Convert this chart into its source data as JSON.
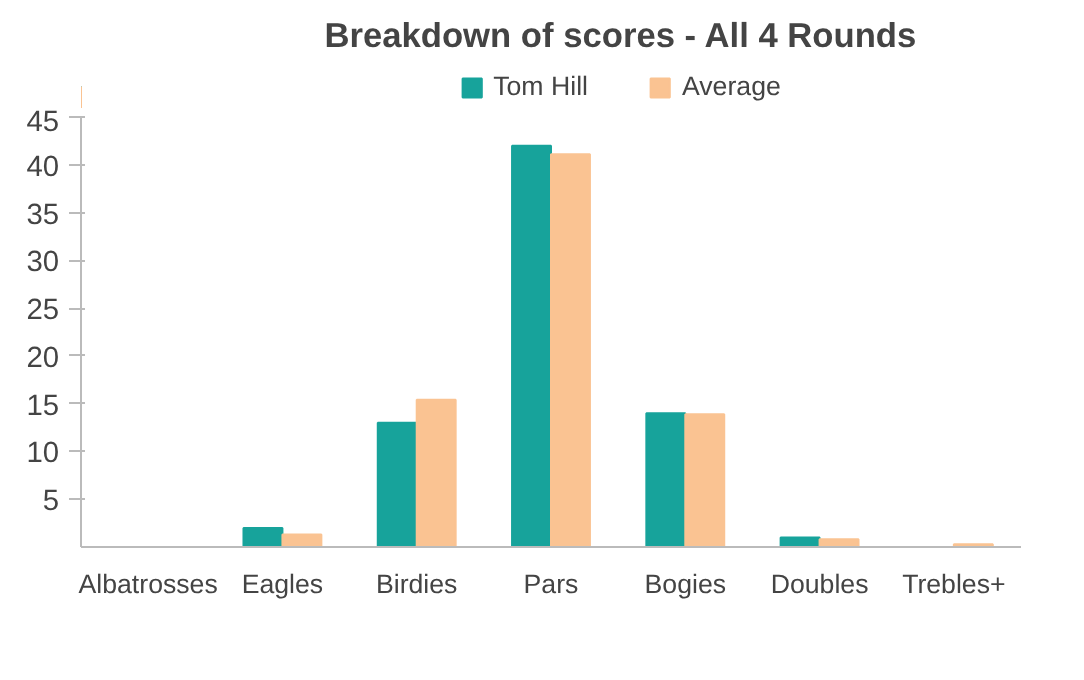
{
  "chart_data": {
    "type": "bar",
    "title": "Breakdown of scores - All 4 Rounds",
    "categories": [
      "Albatrosses",
      "Eagles",
      "Birdies",
      "Pars",
      "Bogies",
      "Doubles",
      "Trebles+"
    ],
    "series": [
      {
        "name": "Tom Hill",
        "color": "#17a39b",
        "values": [
          0,
          2,
          13,
          42,
          14,
          1,
          0
        ]
      },
      {
        "name": "Average",
        "color": "#fac392",
        "values": [
          0,
          1.3,
          15.4,
          41.1,
          13.9,
          0.8,
          0.3
        ]
      }
    ],
    "ylim": [
      0,
      45
    ],
    "yticks": [
      5,
      10,
      15,
      20,
      25,
      30,
      35,
      40,
      45
    ],
    "grid": false,
    "legend": "top"
  }
}
